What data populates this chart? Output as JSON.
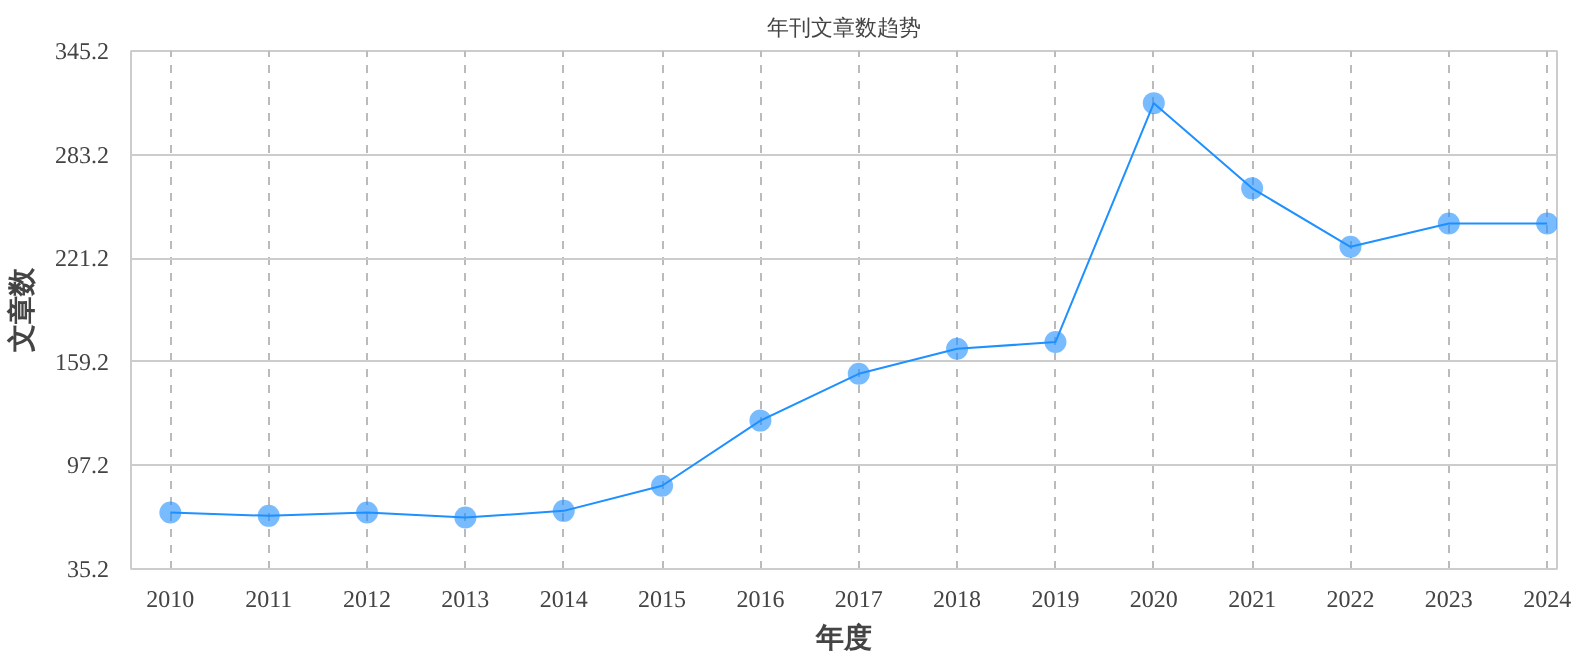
{
  "chart_data": {
    "type": "line",
    "title": "年刊文章数趋势",
    "xlabel": "年度",
    "ylabel": "文章数",
    "categories": [
      "2010",
      "2011",
      "2012",
      "2013",
      "2014",
      "2015",
      "2016",
      "2017",
      "2018",
      "2019",
      "2020",
      "2021",
      "2022",
      "2023",
      "2024"
    ],
    "series": [
      {
        "color": "#1e90ff",
        "values": [
          69,
          67,
          69,
          66,
          70,
          85,
          124,
          152,
          167,
          171,
          314,
          263,
          228,
          242,
          242
        ]
      }
    ],
    "ylim": [
      35.2,
      345.2
    ],
    "yticks": [
      35.2,
      97.2,
      159.2,
      221.2,
      283.2,
      345.2
    ],
    "grid": true,
    "marker": "circle",
    "line_style": "solid"
  }
}
